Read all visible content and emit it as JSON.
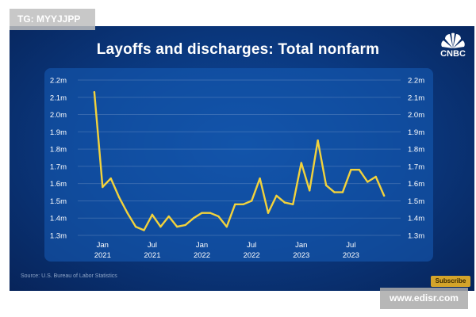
{
  "watermark": "TG: MYYJJPP",
  "brand": "CNBC",
  "subscribe_label": "Subscribe",
  "site_label": "www.edisr.com",
  "source": "Source: U.S. Bureau of Labor Statistics",
  "colors": {
    "line": "#f2d23c",
    "background": "#0b3a82",
    "panel": "#1b5fb8"
  },
  "chart_data": {
    "type": "line",
    "title": "Layoffs and discharges: Total nonfarm",
    "xlabel": "",
    "ylabel": "",
    "ylim": [
      1.3,
      2.2
    ],
    "yticks": [
      "1.3m",
      "1.4m",
      "1.5m",
      "1.6m",
      "1.7m",
      "1.8m",
      "1.9m",
      "2.0m",
      "2.1m",
      "2.2m"
    ],
    "xticks": [
      {
        "month": "Jan",
        "year": "2021"
      },
      {
        "month": "Jul",
        "year": "2021"
      },
      {
        "month": "Jan",
        "year": "2022"
      },
      {
        "month": "Jul",
        "year": "2022"
      },
      {
        "month": "Jan",
        "year": "2023"
      },
      {
        "month": "Jul",
        "year": "2023"
      }
    ],
    "x": [
      "2020-12",
      "2021-01",
      "2021-02",
      "2021-03",
      "2021-04",
      "2021-05",
      "2021-06",
      "2021-07",
      "2021-08",
      "2021-09",
      "2021-10",
      "2021-11",
      "2021-12",
      "2022-01",
      "2022-02",
      "2022-03",
      "2022-04",
      "2022-05",
      "2022-06",
      "2022-07",
      "2022-08",
      "2022-09",
      "2022-10",
      "2022-11",
      "2022-12",
      "2023-01",
      "2023-02",
      "2023-03",
      "2023-04",
      "2023-05",
      "2023-06",
      "2023-07",
      "2023-08",
      "2023-09",
      "2023-10",
      "2023-11"
    ],
    "values": [
      2.13,
      1.58,
      1.63,
      1.52,
      1.43,
      1.35,
      1.33,
      1.42,
      1.35,
      1.41,
      1.35,
      1.36,
      1.4,
      1.43,
      1.43,
      1.41,
      1.35,
      1.48,
      1.48,
      1.5,
      1.63,
      1.43,
      1.53,
      1.49,
      1.48,
      1.72,
      1.56,
      1.85,
      1.59,
      1.55,
      1.55,
      1.68,
      1.68,
      1.61,
      1.64,
      1.53
    ],
    "grid": true,
    "legend": "none"
  }
}
